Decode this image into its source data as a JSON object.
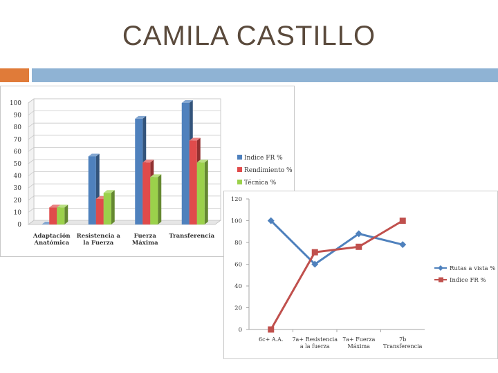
{
  "slide": {
    "title": "CAMILA CASTILLO",
    "accent_colors": [
      "#e07b39",
      "#8fb3d4"
    ]
  },
  "chart_data": [
    {
      "type": "bar",
      "categories": [
        [
          "Adaptación",
          "Anatómica"
        ],
        [
          "Resistencia a",
          "la Fuerza"
        ],
        [
          "Fuerza",
          "Máxima"
        ],
        [
          "Transferencia",
          ""
        ]
      ],
      "series": [
        {
          "name": "Indice FR %",
          "color": "#4f81bd",
          "values": [
            0,
            56,
            87,
            100
          ]
        },
        {
          "name": "Rendimiento %",
          "color": "#e04b4b",
          "values": [
            14,
            21,
            51,
            69
          ]
        },
        {
          "name": "Técnica %",
          "color": "#9bd14b",
          "values": [
            14,
            26,
            39,
            51
          ]
        }
      ],
      "ylim": [
        0,
        100
      ],
      "yticks": [
        0,
        10,
        20,
        30,
        40,
        50,
        60,
        70,
        80,
        90,
        100
      ],
      "grid": true,
      "legend": "right",
      "style": "3d"
    },
    {
      "type": "line",
      "categories": [
        [
          "6c+ A.A.",
          ""
        ],
        [
          "7a+ Resistencia",
          "a la fuerza"
        ],
        [
          "7a+ Fuerza",
          "Máxima"
        ],
        [
          "7b",
          "Transferencia"
        ]
      ],
      "series": [
        {
          "name": "Rutas a vista %",
          "color": "#4f81bd",
          "marker": "diamond",
          "values": [
            100,
            60,
            88,
            78
          ]
        },
        {
          "name": "Indice FR %",
          "color": "#c0504d",
          "marker": "square",
          "values": [
            0,
            71,
            76,
            100
          ]
        }
      ],
      "ylim": [
        0,
        120
      ],
      "yticks": [
        0,
        20,
        40,
        60,
        80,
        100,
        120
      ],
      "grid": false,
      "legend": "right"
    }
  ]
}
